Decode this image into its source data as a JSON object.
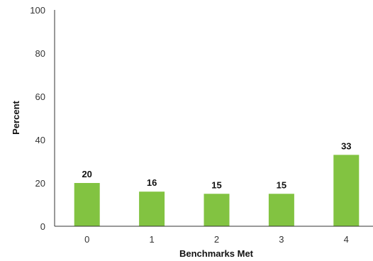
{
  "chart_data": {
    "type": "bar",
    "categories": [
      "0",
      "1",
      "2",
      "3",
      "4"
    ],
    "values": [
      20,
      16,
      15,
      15,
      33
    ],
    "data_labels": [
      "20",
      "16",
      "15",
      "15",
      "33"
    ],
    "xlabel": "Benchmarks Met",
    "ylabel": "Percent",
    "ylim": [
      0,
      100
    ],
    "yticks": [
      "0",
      "20",
      "40",
      "60",
      "80",
      "100"
    ],
    "grid": false,
    "legend": "none",
    "bar_color": "#82c341"
  }
}
